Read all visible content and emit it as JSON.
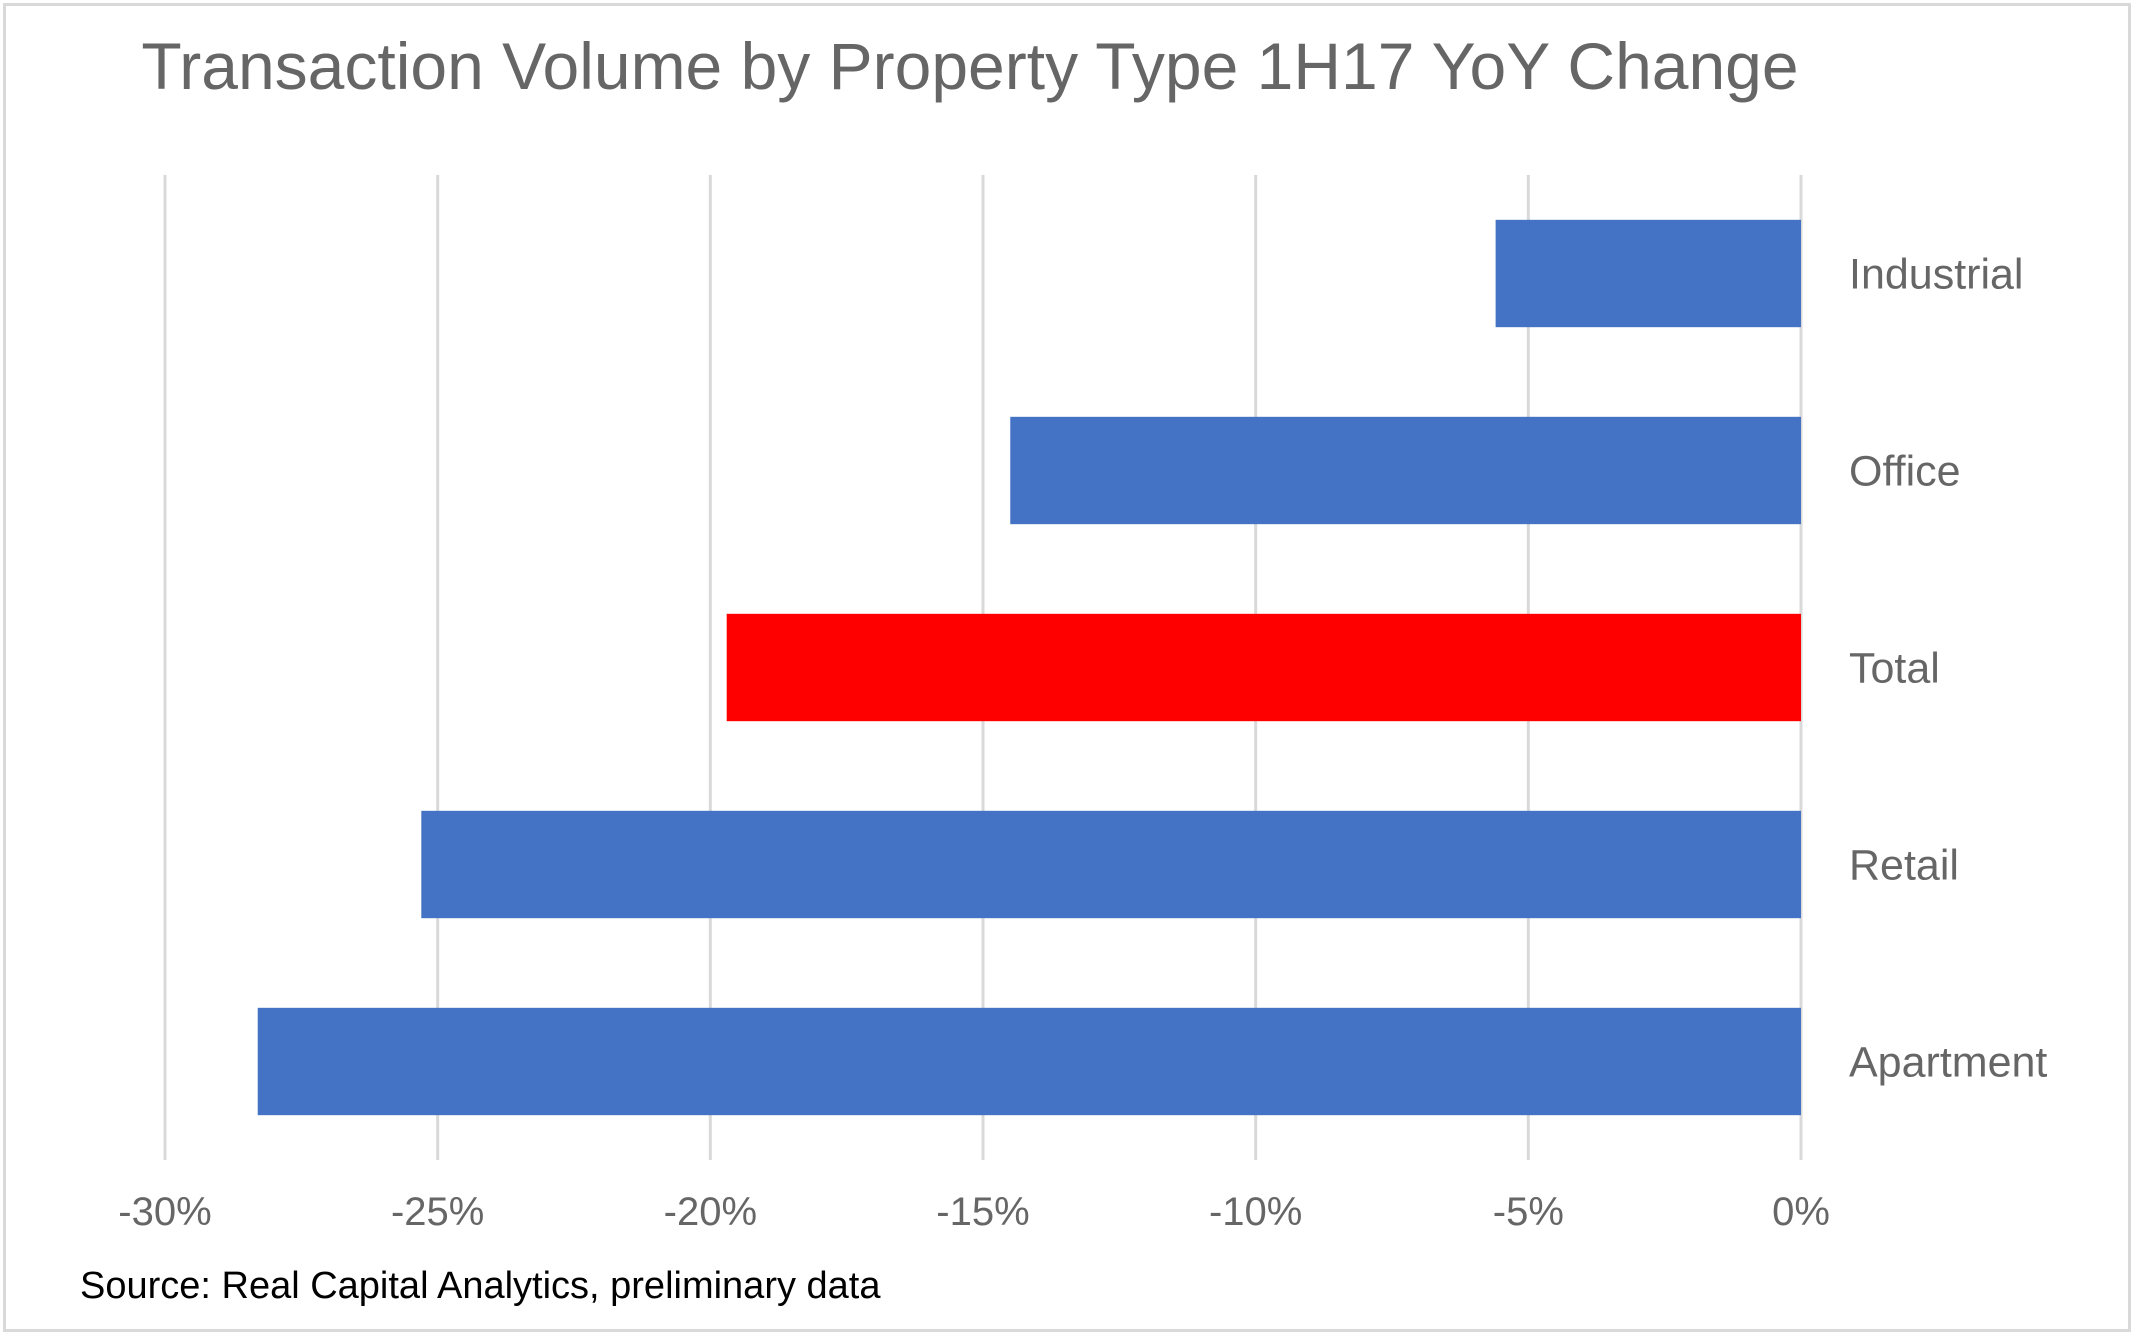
{
  "chart_data": {
    "type": "bar",
    "orientation": "horizontal",
    "title": "Transaction Volume by Property Type 1H17 YoY Change",
    "categories": [
      "Industrial",
      "Office",
      "Total",
      "Retail",
      "Apartment"
    ],
    "values": [
      -5.6,
      -14.5,
      -19.7,
      -25.3,
      -28.3
    ],
    "colors": [
      "#4472c4",
      "#4472c4",
      "#ff0000",
      "#4472c4",
      "#4472c4"
    ],
    "xlim": [
      -30,
      0
    ],
    "ticks": [
      -30,
      -25,
      -20,
      -15,
      -10,
      -5,
      0
    ],
    "tick_labels": [
      "-30%",
      "-25%",
      "-20%",
      "-15%",
      "-10%",
      "-5%",
      "0%"
    ],
    "grid": true,
    "category_label_side": "right",
    "note": "Source: Real Capital Analytics, preliminary data"
  }
}
